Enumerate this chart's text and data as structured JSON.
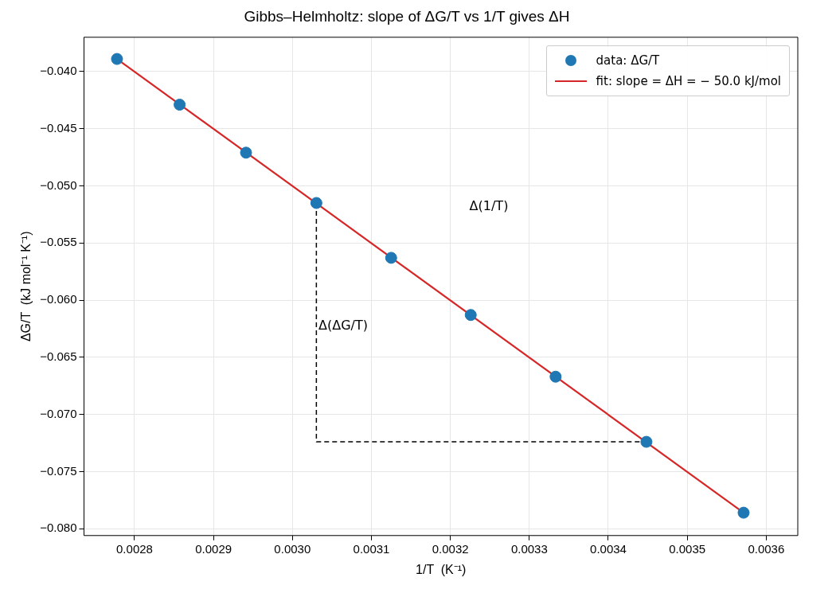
{
  "chart_data": {
    "type": "scatter",
    "title": "Gibbs–Helmholtz: slope of ΔG/T vs 1/T gives ΔH",
    "xlabel": "1/T  (K⁻¹)",
    "ylabel": "ΔG/T  (kJ mol⁻¹ K⁻¹)",
    "x": [
      0.0027778,
      0.0028571,
      0.0029412,
      0.0030303,
      0.003125,
      0.0032258,
      0.0033333,
      0.0034483,
      0.0035714
    ],
    "series": [
      {
        "name": "data: ΔG/T",
        "color": "#1f77b4",
        "marker": "circle",
        "values": [
          -0.0389,
          -0.0429,
          -0.0471,
          -0.0515,
          -0.0563,
          -0.0613,
          -0.0667,
          -0.0724,
          -0.0786
        ]
      },
      {
        "name": "fit: slope = ΔH = − 50.0 kJ/mol",
        "type": "line",
        "color": "#d62728",
        "marker": "none",
        "line_style": "solid",
        "x": [
          0.0027778,
          0.0035714
        ],
        "values": [
          -0.0389,
          -0.0786
        ]
      },
      {
        "type": "line",
        "color": "#000000",
        "marker": "none",
        "line_style": "dashed",
        "x": [
          0.0030303,
          0.0030303,
          0.0034483
        ],
        "values": [
          -0.0515,
          -0.0724,
          -0.0724
        ]
      }
    ],
    "annotations": [
      "Δ(1/T)",
      {
        "text": "Δ(ΔG/T)",
        "x": 0.003033,
        "y": -0.0623
      }
    ],
    "xlim": [
      0.002736,
      0.00364
    ],
    "ylim": [
      -0.0806,
      -0.037
    ],
    "xticks": [
      0.0028,
      0.0029,
      {
        "value": 0.003,
        "label": "0.0030"
      },
      0.0031,
      0.0032,
      0.0033,
      0.0034,
      0.0035,
      0.0036
    ],
    "yticks": [
      {
        "value": -0.04,
        "label": "−0.040"
      },
      {
        "value": -0.045,
        "label": "−0.045"
      },
      {
        "value": -0.05,
        "label": "−0.050"
      },
      {
        "value": -0.055,
        "label": "−0.055"
      },
      {
        "value": -0.06,
        "label": "−0.060"
      },
      {
        "value": -0.065,
        "label": "−0.065"
      },
      {
        "value": -0.07,
        "label": "−0.070"
      },
      {
        "value": -0.075,
        "label": "−0.075"
      },
      {
        "value": -0.08,
        "label": "−0.080"
      }
    ],
    "grid": true,
    "legend": "top right"
  }
}
